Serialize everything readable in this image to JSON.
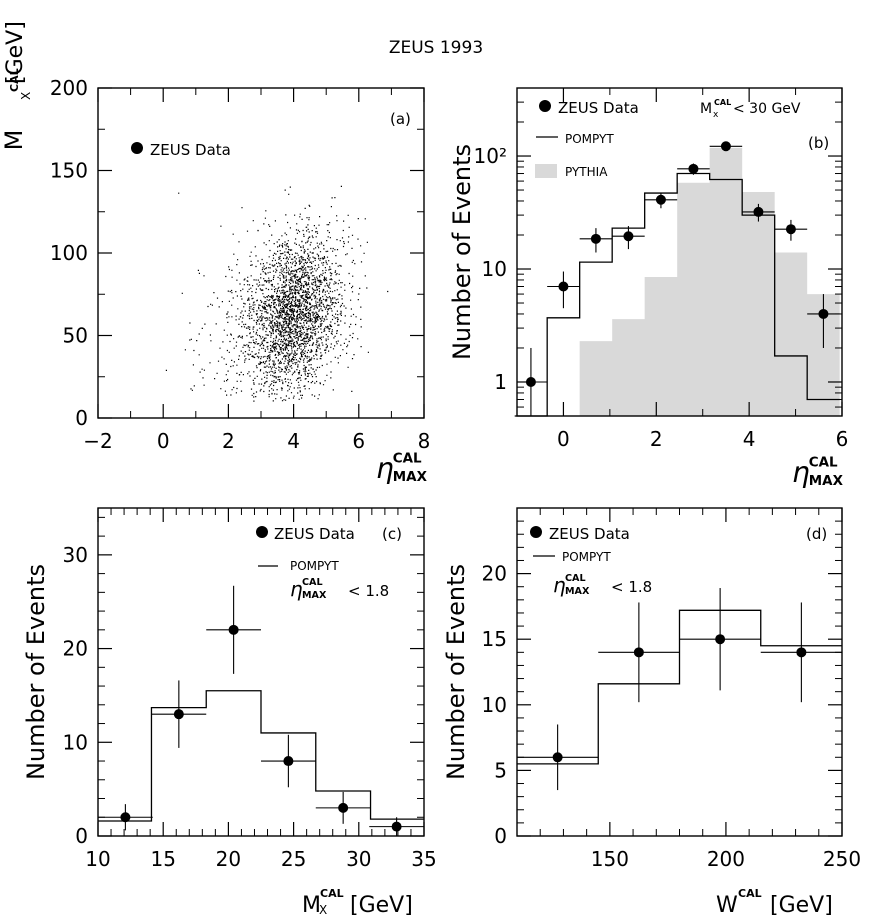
{
  "figure": {
    "title": "ZEUS 1993"
  },
  "chart_data": [
    {
      "panel": "(a)",
      "type": "scatter",
      "xlabel": "η_MAX^CAL",
      "ylabel": "M_X^CAL [GeV]",
      "xlim": [
        -2,
        8
      ],
      "ylim": [
        0,
        200
      ],
      "xticks": [
        "−2",
        "0",
        "2",
        "4",
        "6",
        "8"
      ],
      "yticks": [
        "0",
        "50",
        "100",
        "150",
        "200"
      ],
      "legend": [
        {
          "name": "ZEUS Data",
          "marker": "filled-circle"
        }
      ],
      "legend_position": "top-left",
      "grid": false,
      "distribution": {
        "description_hidden": true,
        "x_center": 4.0,
        "x_sigma": 0.75,
        "y_center": 62,
        "y_sigma": 24,
        "points": 6500
      }
    },
    {
      "panel": "(b)",
      "type": "histogram",
      "xlabel": "η_MAX^CAL",
      "ylabel": "Number of Events",
      "yscale": "log",
      "xlim": [
        -1,
        6
      ],
      "ylim": [
        0.5,
        400
      ],
      "xticks": [
        "0",
        "2",
        "4",
        "6"
      ],
      "yticks": [
        "1",
        "10",
        "10²"
      ],
      "annotation": "M_X^CAL < 30 GeV",
      "legend": [
        {
          "name": "ZEUS Data",
          "marker": "filled-circle"
        },
        {
          "name": "POMPYT",
          "marker": "line"
        },
        {
          "name": "PYTHIA",
          "marker": "gray-fill"
        }
      ],
      "legend_position": "top-left",
      "grid": false,
      "series": [
        {
          "name": "ZEUS Data",
          "x": [
            -0.7,
            0.0,
            0.7,
            1.4,
            2.1,
            2.8,
            3.5,
            4.2,
            4.9,
            5.6
          ],
          "values": [
            1.0,
            7.0,
            18.5,
            19.5,
            41,
            77,
            122,
            32,
            22.5,
            4.0
          ],
          "xerr": 0.35,
          "yerr_low": [
            0.9,
            2.5,
            4.5,
            4.5,
            6.5,
            8.8,
            11,
            5.7,
            4.7,
            2.0
          ],
          "yerr_high": [
            1.0,
            2.5,
            4.5,
            4.5,
            6.5,
            8.8,
            11,
            5.7,
            4.7,
            2.0
          ]
        },
        {
          "name": "POMPYT",
          "type": "step",
          "edges": [
            -1.05,
            -0.35,
            0.35,
            1.05,
            1.75,
            2.45,
            3.15,
            3.85,
            4.55,
            5.25,
            5.95
          ],
          "values": [
            0.5,
            3.7,
            11.5,
            23,
            47,
            70,
            62,
            30,
            1.7,
            0.7
          ]
        },
        {
          "name": "PYTHIA",
          "type": "filled-step",
          "edges": [
            0.35,
            1.05,
            1.75,
            2.45,
            3.15,
            3.85,
            4.55,
            5.25,
            5.95
          ],
          "values": [
            2.3,
            3.6,
            8.5,
            58,
            118,
            48,
            14,
            6
          ]
        }
      ]
    },
    {
      "panel": "(c)",
      "type": "histogram",
      "xlabel": "M_X^CAL [GeV]",
      "ylabel": "Number of Events",
      "xlim": [
        10,
        35
      ],
      "ylim": [
        0,
        35
      ],
      "xticks": [
        "10",
        "15",
        "20",
        "25",
        "30",
        "35"
      ],
      "yticks": [
        "0",
        "10",
        "20",
        "30"
      ],
      "annotation": "η_MAX^CAL < 1.8",
      "legend": [
        {
          "name": "ZEUS Data",
          "marker": "filled-circle"
        },
        {
          "name": "POMPYT",
          "marker": "line"
        }
      ],
      "legend_position": "top-right",
      "grid": false,
      "series": [
        {
          "name": "ZEUS Data",
          "x": [
            12.1,
            16.2,
            20.4,
            24.6,
            28.8,
            32.9
          ],
          "values": [
            2,
            13,
            22,
            8,
            3,
            1
          ],
          "xerr": 2.1,
          "yerr_low": [
            1.4,
            3.6,
            4.7,
            2.8,
            1.7,
            1.0
          ],
          "yerr_high": [
            1.4,
            3.6,
            4.7,
            2.8,
            1.7,
            1.0
          ]
        },
        {
          "name": "POMPYT",
          "type": "step",
          "edges": [
            10,
            14.1,
            18.3,
            22.5,
            26.7,
            30.9,
            35
          ],
          "values": [
            1.6,
            13.7,
            15.5,
            11.0,
            4.8,
            1.8
          ]
        }
      ]
    },
    {
      "panel": "(d)",
      "type": "histogram",
      "xlabel": "W^CAL [GeV]",
      "ylabel": "Number of Events",
      "xlim": [
        110,
        250
      ],
      "ylim": [
        0,
        25
      ],
      "xticks": [
        "150",
        "200",
        "250"
      ],
      "yticks": [
        "0",
        "5",
        "10",
        "15",
        "20"
      ],
      "annotation": "η_MAX^CAL < 1.8",
      "legend": [
        {
          "name": "ZEUS Data",
          "marker": "filled-circle"
        },
        {
          "name": "POMPYT",
          "marker": "line"
        }
      ],
      "legend_position": "top-left",
      "grid": false,
      "series": [
        {
          "name": "ZEUS Data",
          "x": [
            127.5,
            162.5,
            197.5,
            232.5
          ],
          "values": [
            6,
            14,
            15,
            14
          ],
          "xerr": 17.5,
          "yerr_low": [
            2.5,
            3.8,
            3.9,
            3.8
          ],
          "yerr_high": [
            2.5,
            3.8,
            3.9,
            3.8
          ]
        },
        {
          "name": "POMPYT",
          "type": "step",
          "edges": [
            110,
            145,
            180,
            215,
            250
          ],
          "values": [
            5.5,
            11.6,
            17.2,
            14.5
          ]
        }
      ]
    }
  ],
  "labels": {
    "a_panel": "(a)",
    "b_panel": "(b)",
    "c_panel": "(c)",
    "d_panel": "(d)",
    "zeus_data": "ZEUS Data",
    "pompyt": "POMPYT",
    "pythia": "PYTHIA",
    "b_cut_M": "M",
    "b_cut_sup": "CAL",
    "b_cut_sub": "x",
    "b_cut_rest": "< 30 GeV",
    "eta": "η",
    "eta_sup": "CAL",
    "eta_sub": "MAX",
    "eta_cut_rest": "< 1.8",
    "mx_M": "M",
    "mx_sup": "CAL",
    "mx_sub": "X",
    "mx_unit": "[GeV]",
    "w_W": "W",
    "w_sup": "CAL",
    "w_unit": "[GeV]",
    "number_of_events": "Number of Events"
  },
  "colors": {
    "fill": "#d9d9d9",
    "ink": "#000000"
  }
}
